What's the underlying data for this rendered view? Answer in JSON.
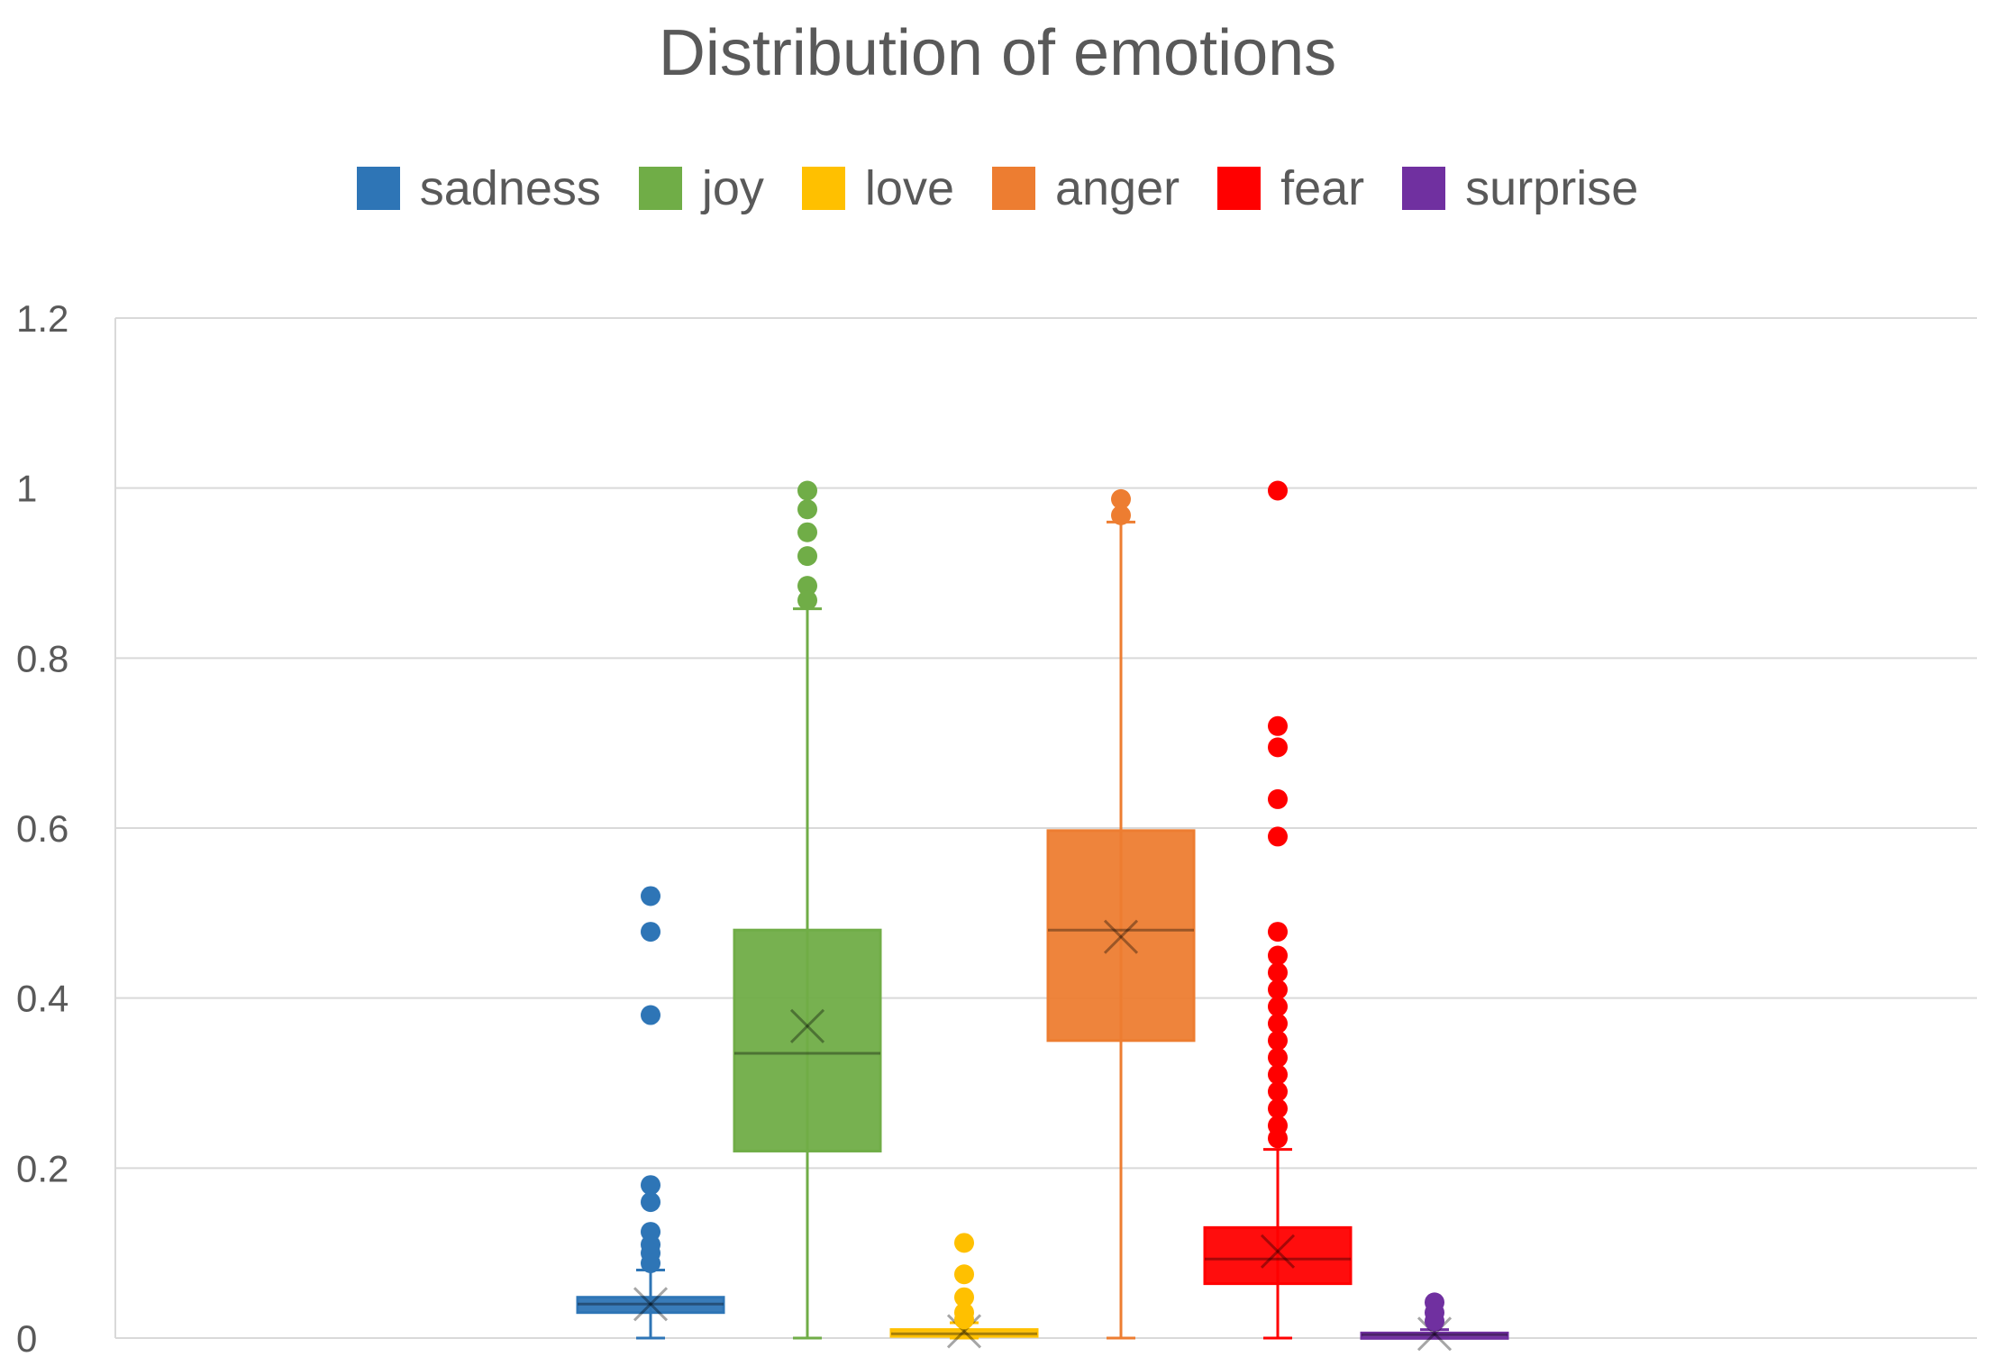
{
  "chart_data": {
    "type": "box",
    "title": "Distribution of emotions",
    "xlabel": "",
    "ylabel": "",
    "ylim": [
      0,
      1.2
    ],
    "yticks": [
      "0",
      "0.2",
      "0.4",
      "0.6",
      "0.8",
      "1",
      "1.2"
    ],
    "ytick_values": [
      0,
      0.2,
      0.4,
      0.6,
      0.8,
      1.0,
      1.2
    ],
    "grid": true,
    "legend_position": "top-center",
    "series": [
      {
        "name": "sadness",
        "color": "#2E75B6",
        "whisker_low": 0.0,
        "q1": 0.03,
        "median": 0.04,
        "q3": 0.048,
        "whisker_high": 0.08,
        "mean": 0.04,
        "outliers": [
          0.52,
          0.478,
          0.38,
          0.18,
          0.16,
          0.125,
          0.11,
          0.1,
          0.088
        ]
      },
      {
        "name": "joy",
        "color": "#70AD47",
        "whisker_low": 0.0,
        "q1": 0.22,
        "median": 0.335,
        "q3": 0.48,
        "whisker_high": 0.858,
        "mean": 0.367,
        "outliers": [
          0.997,
          0.975,
          0.948,
          0.92,
          0.885,
          0.868
        ]
      },
      {
        "name": "love",
        "color": "#FFC000",
        "whisker_low": 0.0,
        "q1": 0.002,
        "median": 0.005,
        "q3": 0.01,
        "whisker_high": 0.018,
        "mean": 0.008,
        "outliers": [
          0.112,
          0.075,
          0.048,
          0.03,
          0.022
        ]
      },
      {
        "name": "anger",
        "color": "#ED7D31",
        "whisker_low": 0.0,
        "q1": 0.35,
        "median": 0.48,
        "q3": 0.597,
        "whisker_high": 0.96,
        "mean": 0.472,
        "outliers": [
          0.987,
          0.968
        ]
      },
      {
        "name": "fear",
        "color": "#FF0000",
        "whisker_low": 0.0,
        "q1": 0.064,
        "median": 0.093,
        "q3": 0.13,
        "whisker_high": 0.222,
        "mean": 0.102,
        "outliers": [
          0.997,
          0.72,
          0.695,
          0.634,
          0.59,
          0.478,
          0.45,
          0.43,
          0.41,
          0.39,
          0.37,
          0.35,
          0.33,
          0.31,
          0.29,
          0.27,
          0.25,
          0.235
        ]
      },
      {
        "name": "surprise",
        "color": "#7030A0",
        "whisker_low": 0.0,
        "q1": 0.002,
        "median": 0.004,
        "q3": 0.006,
        "whisker_high": 0.01,
        "mean": 0.005,
        "outliers": [
          0.042,
          0.03,
          0.02
        ]
      }
    ]
  }
}
